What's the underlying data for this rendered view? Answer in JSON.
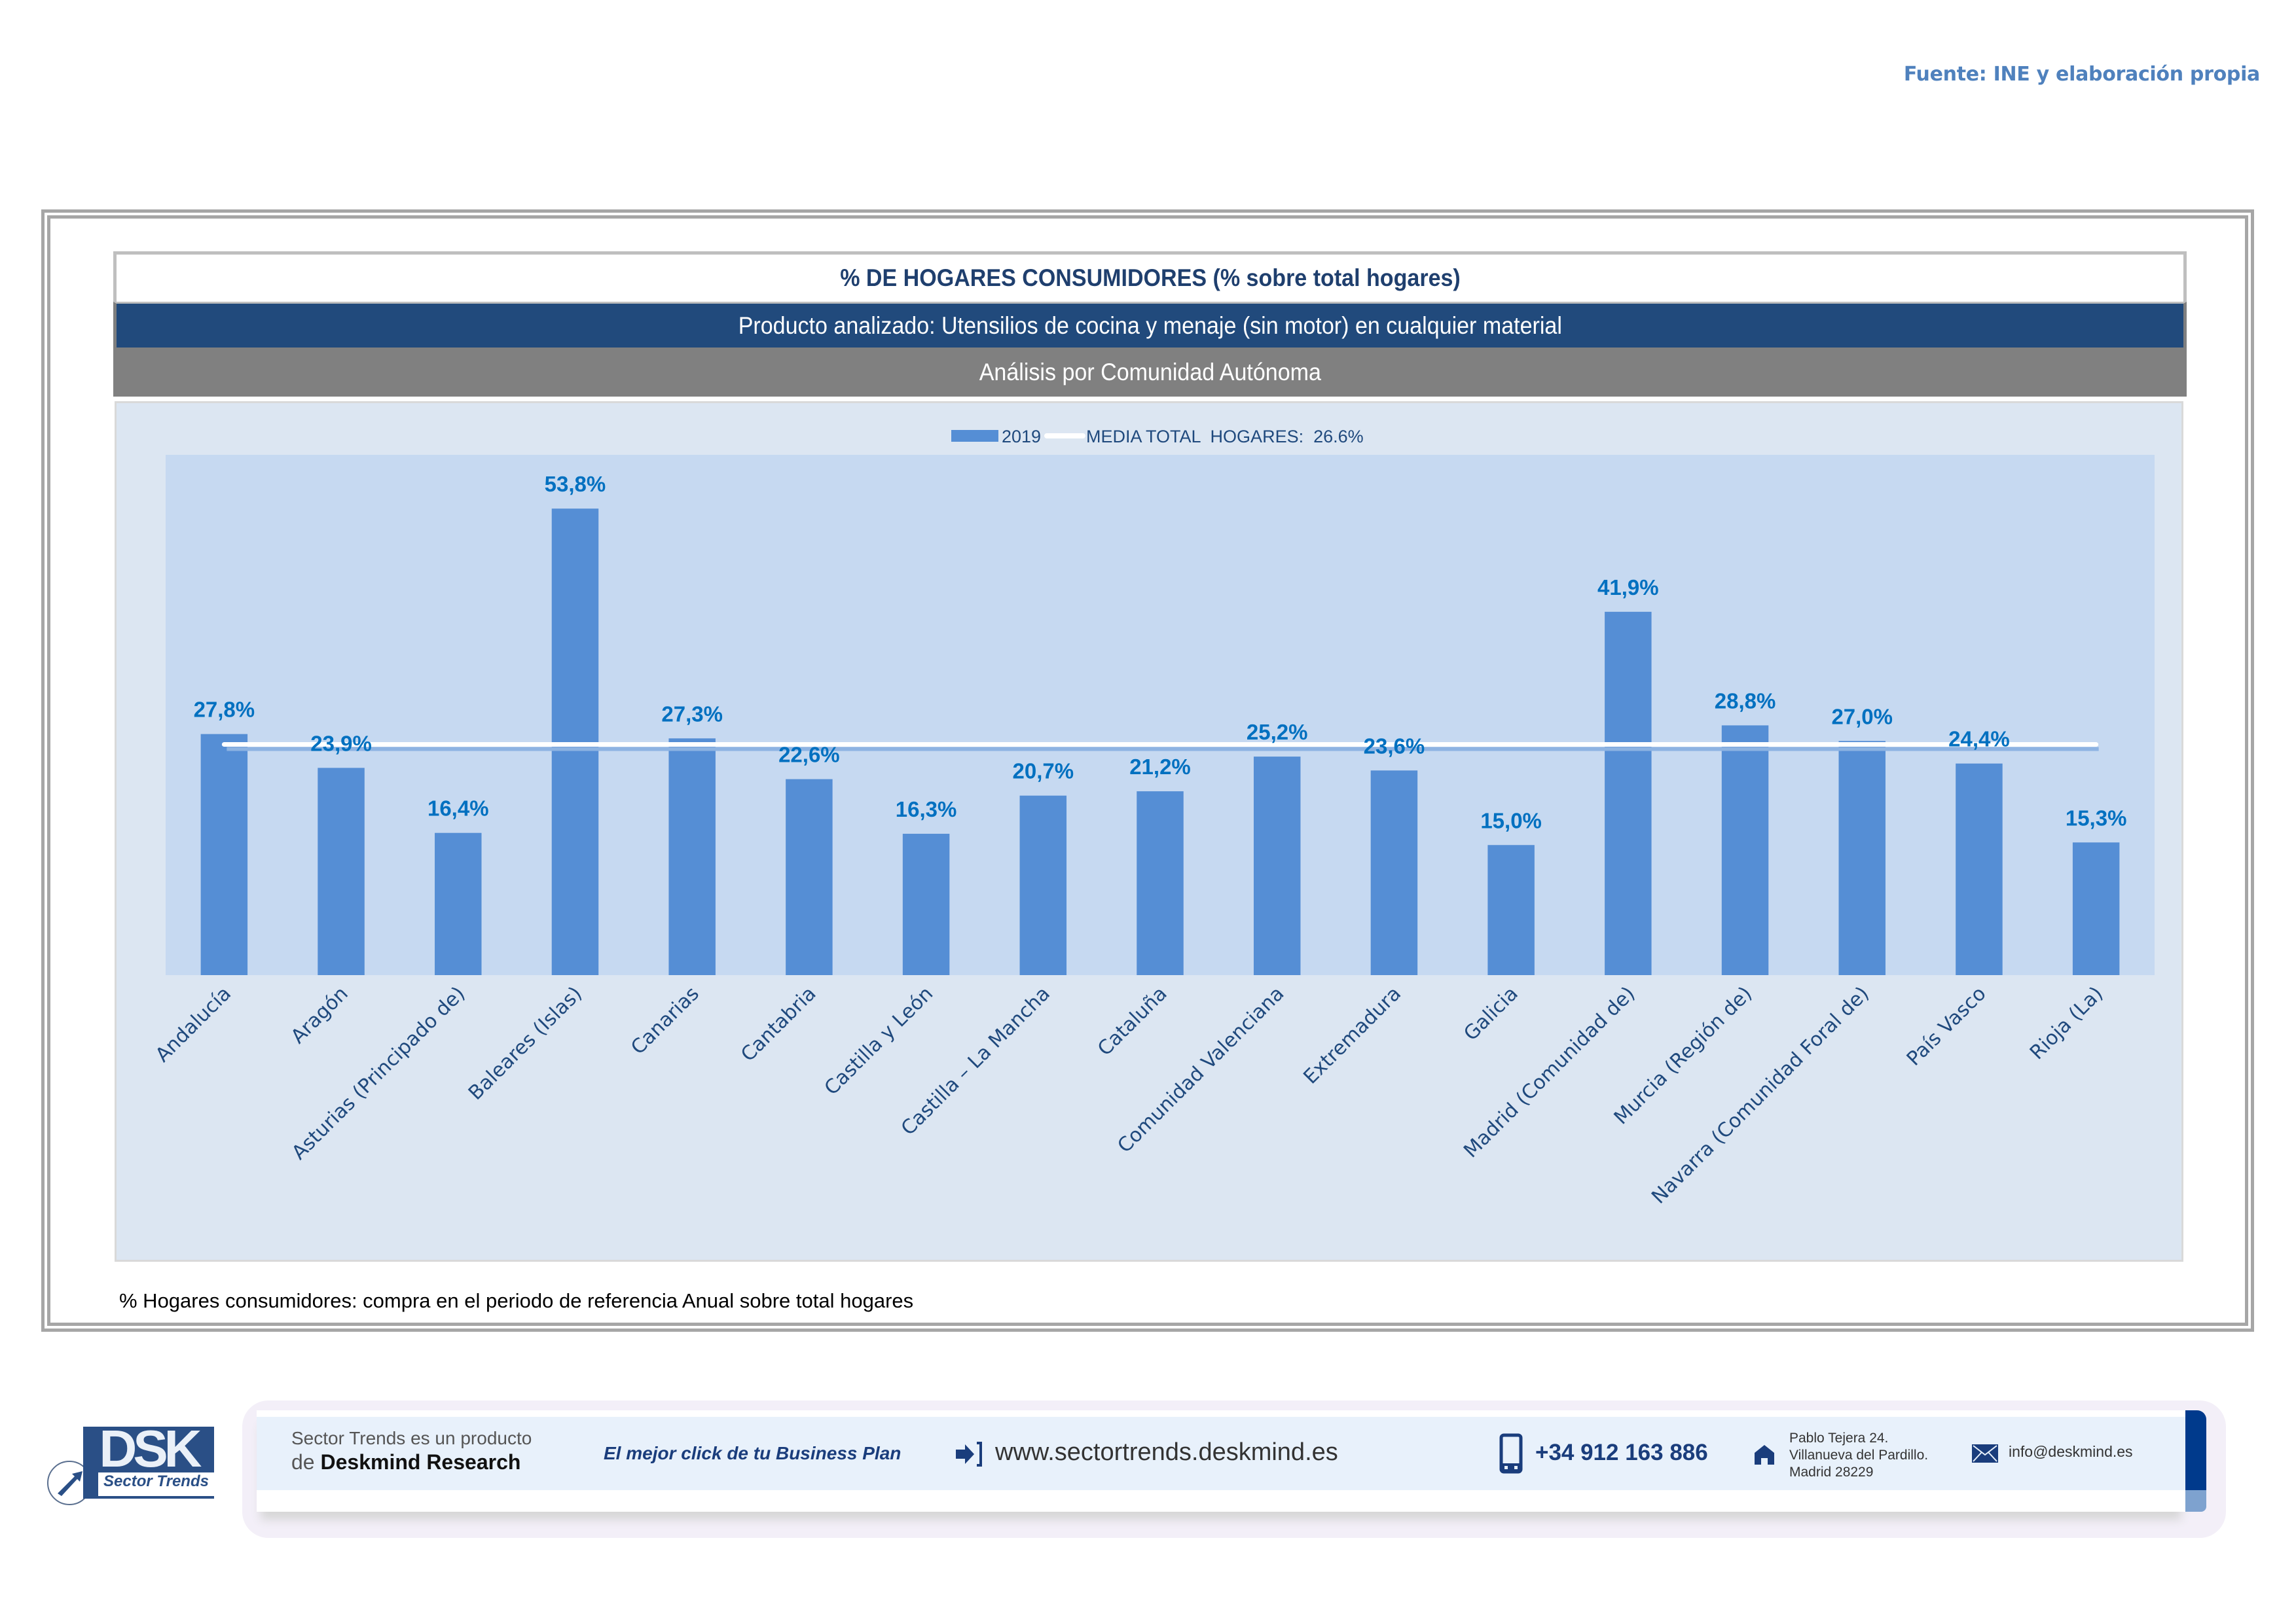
{
  "source": "Fuente: INE y elaboración propia",
  "header": {
    "title": "% DE HOGARES CONSUMIDORES (% sobre total hogares)",
    "subtitle": "Producto analizado: Utensilios de cocina y menaje (sin motor) en cualquier material",
    "analysis": "Análisis por Comunidad Autónoma"
  },
  "colors": {
    "bar": "#558ed5",
    "mean_line": "#ffffff",
    "data_label": "#0070c0",
    "header_band": "#214a7c",
    "analysis_band": "#808080",
    "chart_bg": "#dce6f2",
    "plot_bg": "#c6d9f1"
  },
  "chart_data": {
    "type": "bar",
    "title": "% DE HOGARES CONSUMIDORES (% sobre total hogares)",
    "xlabel": "",
    "ylabel": "",
    "ylim": [
      0,
      60
    ],
    "grid": false,
    "legend_position": "top-center",
    "categories": [
      "Andalucía",
      "Aragón",
      "Asturias (Principado de)",
      "Baleares (Islas)",
      "Canarias",
      "Cantabria",
      "Castilla y León",
      "Castilla – La Mancha",
      "Cataluña",
      "Comunidad Valenciana",
      "Extremadura",
      "Galicia",
      "Madrid (Comunidad de)",
      "Murcia (Región de)",
      "Navarra (Comunidad Foral de)",
      "País Vasco",
      "Rioja (La)"
    ],
    "series": [
      {
        "name": "2019",
        "type": "bar",
        "values": [
          27.8,
          23.9,
          16.4,
          53.8,
          27.3,
          22.6,
          16.3,
          20.7,
          21.2,
          25.2,
          23.6,
          15.0,
          41.9,
          28.8,
          27.0,
          24.4,
          15.3
        ],
        "labels": [
          "27,8%",
          "23,9%",
          "16,4%",
          "53,8%",
          "27,3%",
          "22,6%",
          "16,3%",
          "20,7%",
          "21,2%",
          "25,2%",
          "23,6%",
          "15,0%",
          "41,9%",
          "28,8%",
          "27,0%",
          "24,4%",
          "15,3%"
        ]
      },
      {
        "name": "MEDIA TOTAL  HOGARES:  26.6%",
        "type": "line",
        "value": 26.6
      }
    ],
    "legend": [
      "2019",
      "MEDIA TOTAL  HOGARES:  26.6%"
    ]
  },
  "footnote": "% Hogares consumidores: compra en el periodo de referencia Anual sobre total hogares",
  "footer": {
    "logo_text": "DSK",
    "logo_subtitle": "Sector Trends",
    "product_line1": "Sector Trends es un producto",
    "product_line2_prefix": "de ",
    "product_line2_brand": "Deskmind Research",
    "slogan": "El mejor click de tu Business Plan",
    "website": "www.sectortrends.deskmind.es",
    "phone": "+34 912 163 886",
    "address_line1": "Pablo Tejera 24.",
    "address_line2": "Villanueva del Pardillo.",
    "address_line3": "Madrid 28229",
    "email": "info@deskmind.es",
    "icons": [
      "login-arrow-icon",
      "phone-icon",
      "home-icon",
      "mail-icon",
      "rocket-icon"
    ]
  }
}
